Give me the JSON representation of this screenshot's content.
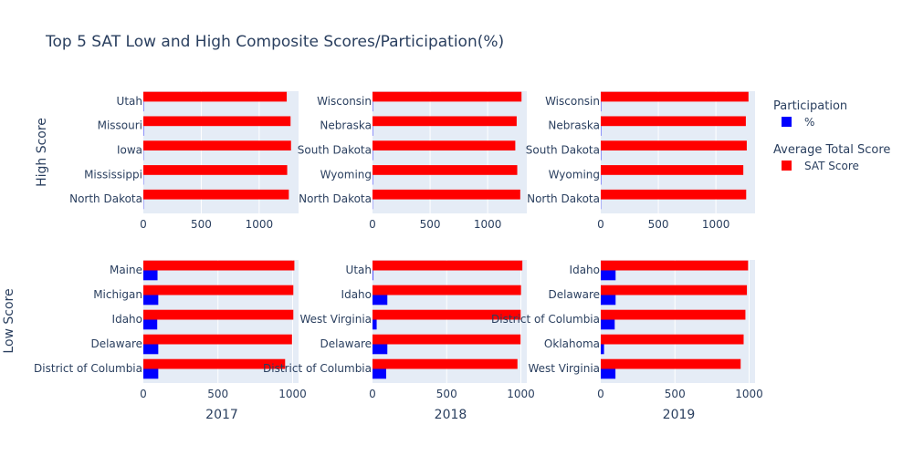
{
  "chart_data": {
    "type": "bar",
    "orientation": "horizontal",
    "title": "Top 5 SAT Low and High Composite Scores/Participation(%)",
    "row_titles": [
      "High Score",
      "Low Score"
    ],
    "column_titles": [
      "2017",
      "2018",
      "2019"
    ],
    "legend": {
      "placement": "right",
      "groups": [
        {
          "title": "Participation",
          "series": "%",
          "color": "#0000ff"
        },
        {
          "title": "Average Total Score",
          "series": "SAT Score",
          "color": "#ff0000"
        }
      ]
    },
    "high_x_ticks": [
      "0",
      "500",
      "1000"
    ],
    "low_x_ticks": [
      "0",
      "500",
      "1000"
    ],
    "high_xlim": [
      0,
      1340
    ],
    "low_xlim": [
      0,
      1040
    ],
    "grid": true,
    "panels": [
      {
        "row": "High Score",
        "year": "2017",
        "categories": [
          "Utah",
          "Missouri",
          "Iowa",
          "Mississippi",
          "North Dakota"
        ],
        "sat_score": [
          1238,
          1271,
          1275,
          1242,
          1256
        ],
        "participation": [
          3,
          3,
          2,
          2,
          2
        ]
      },
      {
        "row": "High Score",
        "year": "2018",
        "categories": [
          "Wisconsin",
          "Nebraska",
          "South Dakota",
          "Wyoming",
          "North Dakota"
        ],
        "sat_score": [
          1294,
          1252,
          1240,
          1257,
          1283
        ],
        "participation": [
          3,
          3,
          3,
          3,
          2
        ]
      },
      {
        "row": "High Score",
        "year": "2019",
        "categories": [
          "Wisconsin",
          "Nebraska",
          "South Dakota",
          "Wyoming",
          "North Dakota"
        ],
        "sat_score": [
          1283,
          1260,
          1268,
          1238,
          1263
        ],
        "participation": [
          3,
          3,
          3,
          3,
          2
        ]
      },
      {
        "row": "Low Score",
        "year": "2017",
        "categories": [
          "Maine",
          "Michigan",
          "Idaho",
          "Delaware",
          "District of Columbia"
        ],
        "sat_score": [
          1012,
          1005,
          1005,
          996,
          950
        ],
        "participation": [
          95,
          100,
          93,
          100,
          100
        ]
      },
      {
        "row": "Low Score",
        "year": "2018",
        "categories": [
          "Utah",
          "Idaho",
          "West Virginia",
          "Delaware",
          "District of Columbia"
        ],
        "sat_score": [
          1010,
          1001,
          999,
          998,
          977
        ],
        "participation": [
          4,
          100,
          28,
          100,
          92
        ]
      },
      {
        "row": "Low Score",
        "year": "2019",
        "categories": [
          "Idaho",
          "Delaware",
          "District of Columbia",
          "Oklahoma",
          "West Virginia"
        ],
        "sat_score": [
          993,
          985,
          975,
          963,
          943
        ],
        "participation": [
          100,
          100,
          94,
          22,
          99
        ]
      }
    ]
  }
}
